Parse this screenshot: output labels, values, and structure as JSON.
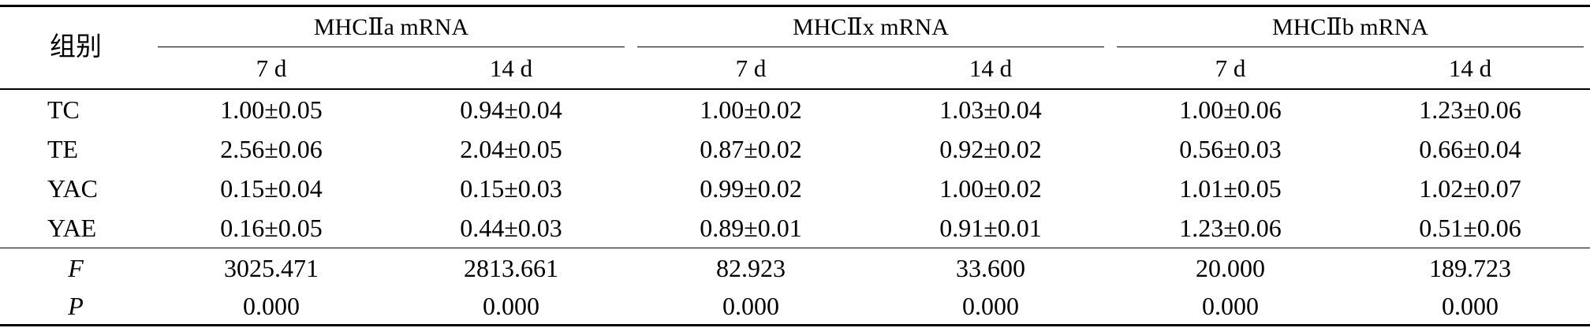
{
  "table": {
    "stub_header": "组别",
    "groups": [
      {
        "label": "MHCⅡa mRNA",
        "subcolumns": [
          "7 d",
          "14 d"
        ]
      },
      {
        "label": "MHCⅡx mRNA",
        "subcolumns": [
          "7 d",
          "14 d"
        ]
      },
      {
        "label": "MHCⅡb mRNA",
        "subcolumns": [
          "7 d",
          "14 d"
        ]
      }
    ],
    "rows": [
      {
        "label": "TC",
        "values": [
          "1.00±0.05",
          "0.94±0.04",
          "1.00±0.02",
          "1.03±0.04",
          "1.00±0.06",
          "1.23±0.06"
        ]
      },
      {
        "label": "TE",
        "values": [
          "2.56±0.06",
          "2.04±0.05",
          "0.87±0.02",
          "0.92±0.02",
          "0.56±0.03",
          "0.66±0.04"
        ]
      },
      {
        "label": "YAC",
        "values": [
          "0.15±0.04",
          "0.15±0.03",
          "0.99±0.02",
          "1.00±0.02",
          "1.01±0.05",
          "1.02±0.07"
        ]
      },
      {
        "label": "YAE",
        "values": [
          "0.16±0.05",
          "0.44±0.03",
          "0.89±0.01",
          "0.91±0.01",
          "1.23±0.06",
          "0.51±0.06"
        ]
      }
    ],
    "statistics": [
      {
        "label": "F",
        "values": [
          "3025.471",
          "2813.661",
          "82.923",
          "33.600",
          "20.000",
          "189.723"
        ]
      },
      {
        "label": "P",
        "values": [
          "0.000",
          "0.000",
          "0.000",
          "0.000",
          "0.000",
          "0.000"
        ]
      }
    ]
  }
}
